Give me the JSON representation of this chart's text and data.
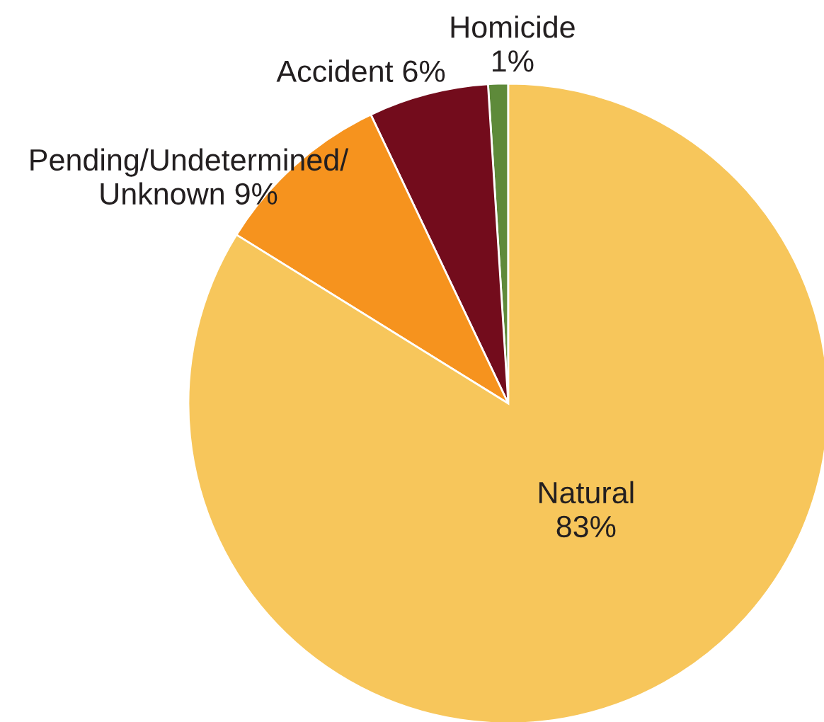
{
  "chart_data": {
    "type": "pie",
    "categories": [
      "Homicide",
      "Accident",
      "Pending/Undetermined/\nUnknown",
      "Natural"
    ],
    "values": [
      1,
      6,
      9,
      83
    ],
    "value_labels": [
      "1%",
      "6%",
      "9%",
      "83%"
    ],
    "colors": [
      "#5e8a3a",
      "#730c1c",
      "#f6931e",
      "#f7c65b"
    ]
  }
}
